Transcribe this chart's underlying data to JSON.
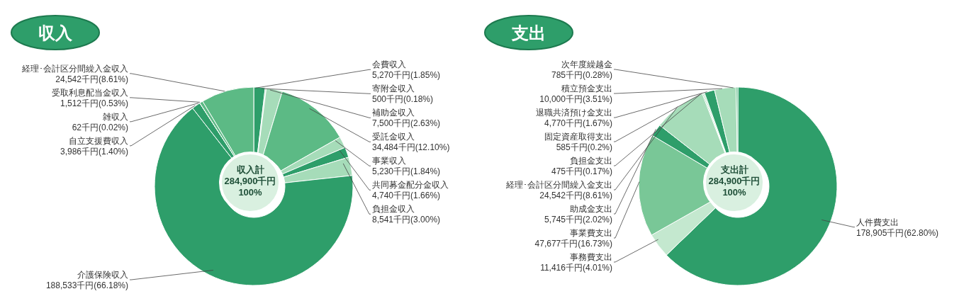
{
  "chart_data": [
    {
      "type": "donut",
      "title": "収入",
      "categories": [
        "会費収入",
        "寄附金収入",
        "補助金収入",
        "受託金収入",
        "事業収入",
        "共同募金配分金収入",
        "負担金収入",
        "介護保険収入",
        "自立支援費収入",
        "雑収入",
        "受取利息配当金収入",
        "経理･会計区分間繰入金収入"
      ],
      "values": [
        5270,
        500,
        7500,
        34484,
        5230,
        4740,
        8541,
        188533,
        3986,
        62,
        1512,
        24542
      ],
      "value_labels": [
        "5,270千円(1.85%)",
        "500千円(0.18%)",
        "7,500千円(2.63%)",
        "34,484千円(12.10%)",
        "5,230千円(1.84%)",
        "4,740千円(1.66%)",
        "8,541千円(3.00%)",
        "188,533千円(66.18%)",
        "3,986千円(1.40%)",
        "62千円(0.02%)",
        "1,512千円(0.53%)",
        "24,542千円(8.61%)"
      ],
      "colors": [
        "#2e9e6a",
        "#a6dcb9",
        "#a6dcb9",
        "#5cba85",
        "#a6dcb9",
        "#2e9e6a",
        "#a6dcb9",
        "#2e9e6a",
        "#2e9e6a",
        "#a6dcb9",
        "#5cba85",
        "#5cba85"
      ],
      "annotations": [
        "収入計",
        "284,900千円",
        "100%"
      ]
    },
    {
      "type": "donut",
      "title": "支出",
      "categories": [
        "人件費支出",
        "事務費支出",
        "事業費支出",
        "助成金支出",
        "経理･会計区分間繰入金支出",
        "負担金支出",
        "固定資産取得支出",
        "退職共済預け金支出",
        "積立預金支出",
        "次年度繰越金"
      ],
      "values": [
        178905,
        11416,
        47677,
        5745,
        24542,
        475,
        585,
        4770,
        10000,
        785
      ],
      "value_labels": [
        "178,905千円(62.80%)",
        "11,416千円(4.01%)",
        "47,677千円(16.73%)",
        "5,745千円(2.02%)",
        "24,542千円(8.61%)",
        "475千円(0.17%)",
        "585千円(0.2%)",
        "4,770千円(1.67%)",
        "10,000千円(3.51%)",
        "785千円(0.28%)"
      ],
      "colors": [
        "#2e9e6a",
        "#c4e8cf",
        "#79c797",
        "#2e9e6a",
        "#a6dcb9",
        "#5cba85",
        "#a6dcb9",
        "#2e9e6a",
        "#a6dcb9",
        "#5cba85"
      ],
      "annotations": [
        "支出計",
        "284,900千円",
        "100%"
      ]
    }
  ]
}
